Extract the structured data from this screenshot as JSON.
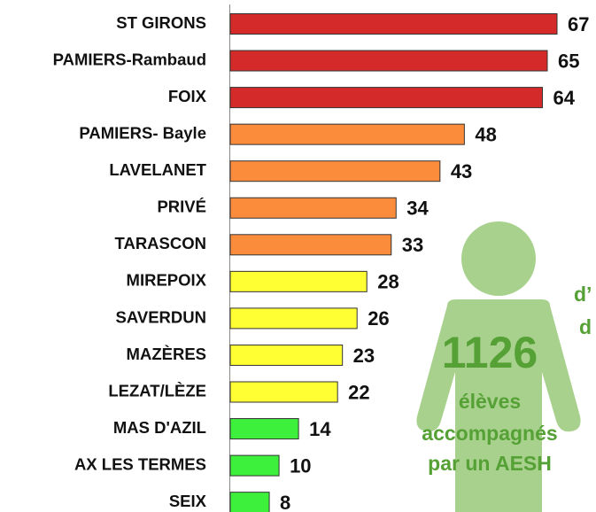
{
  "chart_data": {
    "type": "barh",
    "categories": [
      "ST GIRONS",
      "PAMIERS-Rambaud",
      "FOIX",
      "PAMIERS- Bayle",
      "LAVELANET",
      "PRIVÉ",
      "TARASCON",
      "MIREPOIX",
      "SAVERDUN",
      "MAZÈRES",
      "LEZAT/LÈZE",
      "MAS D'AZIL",
      "AX LES TERMES",
      "SEIX"
    ],
    "values": [
      67,
      65,
      64,
      48,
      43,
      34,
      33,
      28,
      26,
      23,
      22,
      14,
      10,
      8
    ],
    "colors": [
      "#d42a2a",
      "#d42a2a",
      "#d42a2a",
      "#fa8c3c",
      "#fa8c3c",
      "#fa8c3c",
      "#fa8c3c",
      "#ffff33",
      "#ffff33",
      "#ffff33",
      "#ffff33",
      "#3cf03c",
      "#3cf03c",
      "#3cf03c"
    ],
    "annotations": [
      "1126",
      "élèves",
      "accompagnés",
      "par un AESH",
      "d’",
      "d"
    ]
  }
}
